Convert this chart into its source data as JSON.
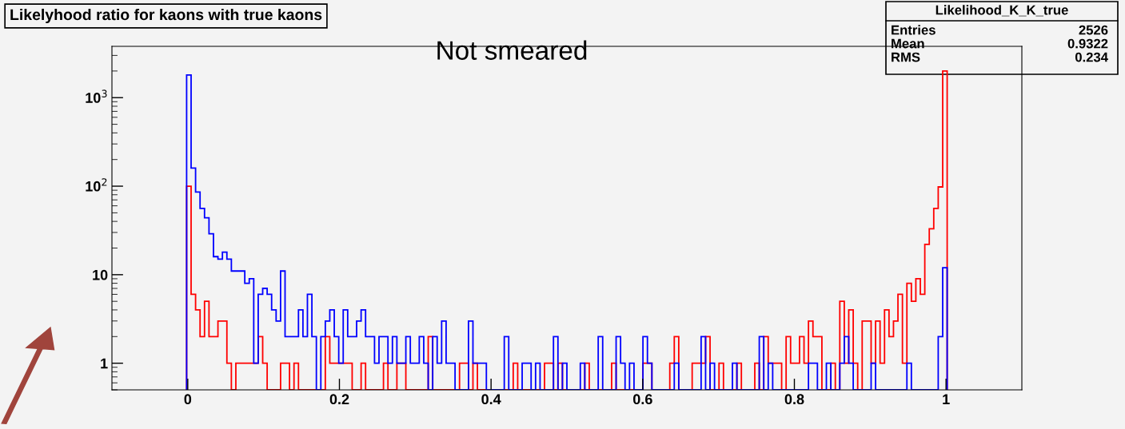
{
  "chart_data": {
    "type": "histogram",
    "title": "Likelyhood ratio for kaons with true kaons",
    "annotations": [
      "Not smeared",
      "Likelihood_K_K_true",
      "Entries 2526",
      "Mean 0.9322",
      "RMS 0.234"
    ],
    "bins": [
      -0.0015,
      0.0044,
      0.0103,
      0.0162,
      0.0221,
      0.028,
      0.0339,
      0.0398,
      0.0457,
      0.0516,
      0.0575,
      0.0634,
      0.0693,
      0.0752,
      0.0811,
      0.087,
      0.0929,
      0.0988,
      0.1047,
      0.1106,
      0.1165,
      0.1224,
      0.1283,
      0.1342,
      0.1401,
      0.146,
      0.1519,
      0.1578,
      0.1637,
      0.1696,
      0.1755,
      0.1814,
      0.1873,
      0.1932,
      0.1991,
      0.205,
      0.2109,
      0.2168,
      0.2227,
      0.2286,
      0.2345,
      0.2404,
      0.2463,
      0.2522,
      0.2581,
      0.264,
      0.2699,
      0.2758,
      0.2817,
      0.2876,
      0.2935,
      0.2994,
      0.3053,
      0.3112,
      0.3171,
      0.323,
      0.3289,
      0.3348,
      0.3407,
      0.3466,
      0.3525,
      0.3584,
      0.3643,
      0.3702,
      0.3761,
      0.382,
      0.3879,
      0.3938,
      0.3997,
      0.4056,
      0.4115,
      0.4174,
      0.4233,
      0.4292,
      0.4351,
      0.441,
      0.4469,
      0.4528,
      0.4587,
      0.4646,
      0.4705,
      0.4764,
      0.4823,
      0.4882,
      0.4941,
      0.5,
      0.5059,
      0.5118,
      0.5177,
      0.5236,
      0.5295,
      0.5354,
      0.5413,
      0.5472,
      0.5531,
      0.559,
      0.5649,
      0.5708,
      0.5767,
      0.5826,
      0.5885,
      0.5944,
      0.6003,
      0.6062,
      0.6121,
      0.618,
      0.6239,
      0.6298,
      0.6357,
      0.6416,
      0.6475,
      0.6534,
      0.6593,
      0.6652,
      0.6711,
      0.677,
      0.6829,
      0.6888,
      0.6947,
      0.7006,
      0.7065,
      0.7124,
      0.7183,
      0.7242,
      0.7301,
      0.736,
      0.7419,
      0.7478,
      0.7537,
      0.7596,
      0.7655,
      0.7714,
      0.7773,
      0.7832,
      0.7891,
      0.795,
      0.8009,
      0.8068,
      0.8127,
      0.8186,
      0.8245,
      0.8304,
      0.8363,
      0.8422,
      0.8481,
      0.854,
      0.8599,
      0.8658,
      0.8717,
      0.8776,
      0.8835,
      0.8894,
      0.8953,
      0.9012,
      0.9071,
      0.913,
      0.9189,
      0.9248,
      0.9307,
      0.9366,
      0.9425,
      0.9484,
      0.9543,
      0.9602,
      0.9661,
      0.972,
      0.9779,
      0.9838,
      0.9897,
      0.9956,
      1.0015
    ],
    "series": [
      {
        "color": "#ff0000",
        "values": [
          100,
          6,
          4,
          2,
          5,
          2,
          2,
          3,
          3,
          1,
          null,
          1,
          1,
          1,
          1,
          1,
          2,
          1,
          null,
          null,
          null,
          1,
          1,
          null,
          1,
          null,
          null,
          null,
          null,
          null,
          null,
          2,
          1,
          1,
          1,
          1,
          1,
          null,
          null,
          1,
          null,
          null,
          null,
          null,
          1,
          null,
          null,
          1,
          1,
          null,
          null,
          null,
          null,
          null,
          2,
          null,
          null,
          null,
          null,
          null,
          null,
          1,
          1,
          null,
          1,
          null,
          null,
          null,
          null,
          null,
          null,
          null,
          null,
          1,
          null,
          null,
          null,
          null,
          null,
          null,
          1,
          1,
          null,
          1,
          null,
          null,
          null,
          null,
          null,
          1,
          null,
          null,
          null,
          null,
          null,
          1,
          null,
          null,
          null,
          null,
          null,
          null,
          1,
          1,
          null,
          null,
          null,
          null,
          1,
          2,
          null,
          null,
          null,
          1,
          1,
          1,
          2,
          null,
          null,
          1,
          null,
          null,
          null,
          1,
          null,
          null,
          null,
          1,
          null,
          2,
          1,
          1,
          1,
          null,
          2,
          1,
          1,
          2,
          1,
          3,
          2,
          2,
          null,
          null,
          1,
          null,
          5,
          1,
          4,
          1,
          null,
          3,
          3,
          1,
          3,
          1,
          4,
          2,
          3,
          6,
          1,
          8,
          5,
          9,
          6,
          22,
          33,
          56,
          98,
          2000
        ]
      },
      {
        "color": "#0000ff",
        "values": [
          1800,
          160,
          86,
          56,
          44,
          29,
          16,
          15,
          18,
          15,
          11,
          11,
          11,
          8,
          9,
          1,
          6,
          7,
          6,
          4,
          3,
          11,
          2,
          2,
          2,
          4,
          2,
          6,
          2,
          null,
          2,
          3,
          4,
          2,
          1,
          4,
          2,
          2,
          3,
          4,
          2,
          2,
          1,
          2,
          2,
          1,
          2,
          1,
          1,
          2,
          1,
          1,
          2,
          1,
          null,
          2,
          1,
          3,
          1,
          1,
          null,
          null,
          null,
          3,
          1,
          1,
          1,
          null,
          null,
          null,
          null,
          2,
          null,
          null,
          null,
          1,
          1,
          null,
          1,
          null,
          null,
          null,
          2,
          null,
          1,
          null,
          null,
          null,
          1,
          null,
          null,
          null,
          2,
          null,
          null,
          null,
          2,
          1,
          null,
          1,
          null,
          null,
          2,
          1,
          null,
          null,
          null,
          null,
          null,
          1,
          null,
          null,
          null,
          null,
          null,
          2,
          null,
          1,
          null,
          null,
          null,
          null,
          1,
          null,
          null,
          null,
          null,
          null,
          2,
          null,
          1,
          null,
          null,
          null,
          null,
          null,
          null,
          null,
          null,
          1,
          1,
          null,
          null,
          1,
          null,
          null,
          1,
          2,
          1,
          null,
          null,
          null,
          null,
          1,
          null,
          null,
          null,
          null,
          null,
          null,
          null,
          1,
          null,
          null,
          null,
          null,
          null,
          null,
          2,
          12
        ]
      }
    ],
    "log": "y",
    "xlim": [
      -0.1,
      1.1
    ],
    "ylim": [
      0.5,
      3800
    ],
    "xticks": [
      0,
      0.2,
      0.4,
      0.6,
      0.8,
      1
    ],
    "yticks": [
      1,
      10,
      {
        "value": 100,
        "label": "10$^{2}$"
      },
      {
        "value": 1000,
        "label": "10$^{3}$"
      }
    ],
    "grid": false
  }
}
